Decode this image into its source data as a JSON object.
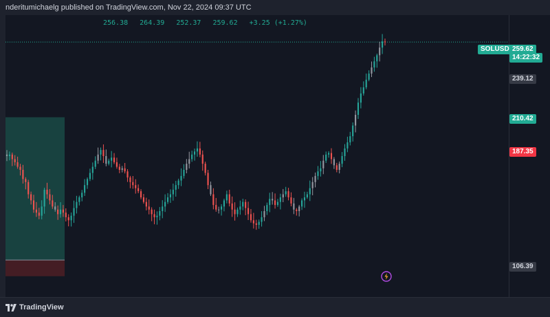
{
  "header": {
    "byline": "nderitumichaelg published on TradingView.com, Nov 22, 2024 09:37 UTC"
  },
  "ohlc": {
    "open": "256.38",
    "high": "264.39",
    "low": "252.37",
    "close": "259.62",
    "change": "+3.25 (+1.27%)"
  },
  "price_scale": {
    "symbol_tag": "SOLUSDT",
    "last_price": "259.62",
    "countdown": "14:22:32",
    "levels": [
      {
        "label": "239.12",
        "kind": "gray"
      },
      {
        "label": "210.42",
        "kind": "green"
      },
      {
        "label": "187.35",
        "kind": "red"
      },
      {
        "label": "106.39",
        "kind": "gray"
      }
    ]
  },
  "footer": {
    "brand": "TradingView"
  },
  "icons": {
    "alert": "lightning-alert-icon",
    "logo": "tradingview-logo-icon"
  },
  "colors": {
    "up": "#26a69a",
    "down": "#ef5350",
    "neutral": "#9598a1",
    "target_zone": "#1a4a45",
    "stop_zone": "#4a1e25",
    "last_price": "#22ab94",
    "background": "#131722"
  },
  "chart_data": {
    "type": "candlestick",
    "symbol": "SOLUSDT",
    "ylim": [
      95,
      275
    ],
    "last": 259.62,
    "position_box": {
      "entry": 117,
      "target": 210.42,
      "stop": 106.39
    },
    "close_path": [
      185,
      186,
      183,
      181,
      178,
      176,
      170,
      168,
      160,
      156,
      150,
      148,
      146,
      152,
      163,
      160,
      156,
      152,
      150,
      147,
      150,
      148,
      145,
      143,
      146,
      151,
      155,
      158,
      161,
      166,
      170,
      174,
      178,
      182,
      186,
      189,
      185,
      180,
      182,
      184,
      181,
      178,
      176,
      177,
      175,
      171,
      168,
      166,
      164,
      162,
      158,
      155,
      152,
      150,
      147,
      145,
      146,
      149,
      152,
      155,
      158,
      160,
      163,
      166,
      169,
      172,
      176,
      180,
      183,
      186,
      188,
      190,
      186,
      180,
      174,
      166,
      160,
      153,
      150,
      150,
      152,
      156,
      160,
      154,
      150,
      147,
      150,
      152,
      155,
      151,
      147,
      143,
      141,
      140,
      142,
      145,
      149,
      153,
      157,
      156,
      153,
      155,
      158,
      160,
      162,
      158,
      154,
      150,
      149,
      152,
      156,
      158,
      160,
      164,
      168,
      172,
      175,
      177,
      182,
      186,
      187,
      183,
      179,
      176,
      180,
      185,
      190,
      194,
      198,
      205,
      212,
      220,
      226,
      230,
      235,
      239,
      243,
      247,
      251,
      256,
      260,
      259.62
    ]
  }
}
